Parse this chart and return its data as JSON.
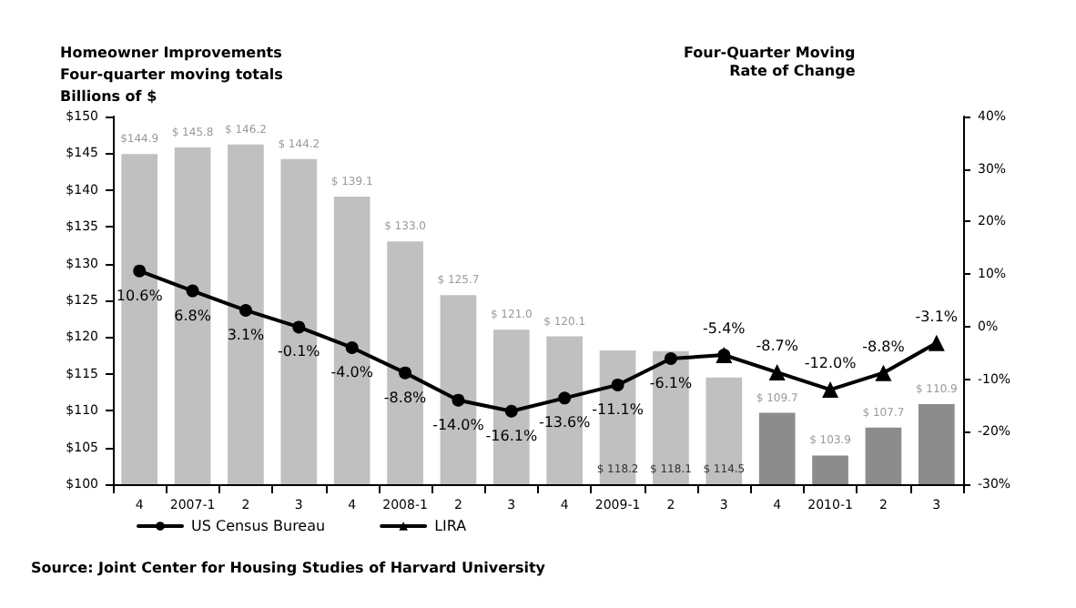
{
  "chart_data": {
    "type": "bar",
    "title": "Homeowner Improvements",
    "subtitle": "Four-quarter moving totals",
    "ylabel": "Billions of $",
    "y2label": "Four-Quarter Moving\nRate of Change",
    "annotations": [
      "Source: Joint Center for Housing Studies of Harvard University"
    ],
    "categories": [
      "4",
      "2007-1",
      "2",
      "3",
      "4",
      "2008-1",
      "2",
      "3",
      "4",
      "2009-1",
      "2",
      "3",
      "4",
      "2010-1",
      "2",
      "3"
    ],
    "series": [
      {
        "colors": [
          "#c0c0c0",
          "#c0c0c0",
          "#c0c0c0",
          "#c0c0c0",
          "#c0c0c0",
          "#c0c0c0",
          "#c0c0c0",
          "#c0c0c0",
          "#c0c0c0",
          "#c0c0c0",
          "#c0c0c0",
          "#c0c0c0",
          "#8c8c8c",
          "#8c8c8c",
          "#8c8c8c",
          "#8c8c8c"
        ],
        "values": [
          144.9,
          145.8,
          146.2,
          144.2,
          139.1,
          133.0,
          125.7,
          121.0,
          120.1,
          118.2,
          118.1,
          114.5,
          109.7,
          103.9,
          107.7,
          110.9
        ],
        "value_labels": [
          "$144.9",
          "$ 145.8",
          "$ 146.2",
          "$ 144.2",
          "$ 139.1",
          "$ 133.0",
          "$ 125.7",
          "$ 121.0",
          "$ 120.1",
          "$ 118.2",
          "$ 118.1",
          "$ 114.5",
          "$ 109.7",
          "$ 103.9",
          "$ 107.7",
          "$ 110.9"
        ]
      },
      {
        "type": "line",
        "name": "US Census Bureau",
        "axis": "y2",
        "color": "#000000",
        "marker": "circle",
        "line_style": "solid",
        "values": [
          10.6,
          6.8,
          3.1,
          -0.1,
          -4.0,
          -8.8,
          -14.0,
          -16.1,
          -13.6,
          -11.1,
          -6.1,
          -5.4,
          null,
          null,
          null,
          null
        ],
        "value_labels": [
          "10.6%",
          "6.8%",
          "3.1%",
          "-0.1%",
          "-4.0%",
          "-8.8%",
          "-14.0%",
          "-16.1%",
          "-13.6%",
          "-11.1%",
          "-6.1%",
          null,
          null,
          null,
          null,
          null
        ]
      },
      {
        "type": "line",
        "name": "LIRA",
        "axis": "y2",
        "color": "#000000",
        "marker": "triangle",
        "line_style": "solid",
        "values": [
          null,
          null,
          null,
          null,
          null,
          null,
          null,
          null,
          null,
          null,
          null,
          -5.4,
          -8.7,
          -12.0,
          -8.8,
          -3.1
        ],
        "value_labels": [
          null,
          null,
          null,
          null,
          null,
          null,
          null,
          null,
          null,
          null,
          null,
          "-5.4%",
          "-8.7%",
          "-12.0%",
          "-8.8%",
          "-3.1%"
        ]
      }
    ],
    "ylim": [
      100,
      150
    ],
    "yticks": [
      {
        "value": 100,
        "label": "$100"
      },
      {
        "value": 105,
        "label": "$105"
      },
      {
        "value": 110,
        "label": "$110"
      },
      {
        "value": 115,
        "label": "$115"
      },
      {
        "value": 120,
        "label": "$120"
      },
      {
        "value": 125,
        "label": "$125"
      },
      {
        "value": 130,
        "label": "$130"
      },
      {
        "value": 135,
        "label": "$135"
      },
      {
        "value": 140,
        "label": "$140"
      },
      {
        "value": 145,
        "label": "$145"
      },
      {
        "value": 150,
        "label": "$150"
      }
    ],
    "y2lim": [
      -30,
      40
    ],
    "y2ticks": [
      {
        "value": -30,
        "label": "-30%"
      },
      {
        "value": -20,
        "label": "-20%"
      },
      {
        "value": -10,
        "label": "-10%"
      },
      {
        "value": 0,
        "label": "0%"
      },
      {
        "value": 10,
        "label": "10%"
      },
      {
        "value": 20,
        "label": "20%"
      },
      {
        "value": 30,
        "label": "30%"
      },
      {
        "value": 40,
        "label": "40%"
      }
    ],
    "grid": false,
    "legend": "bottom"
  }
}
